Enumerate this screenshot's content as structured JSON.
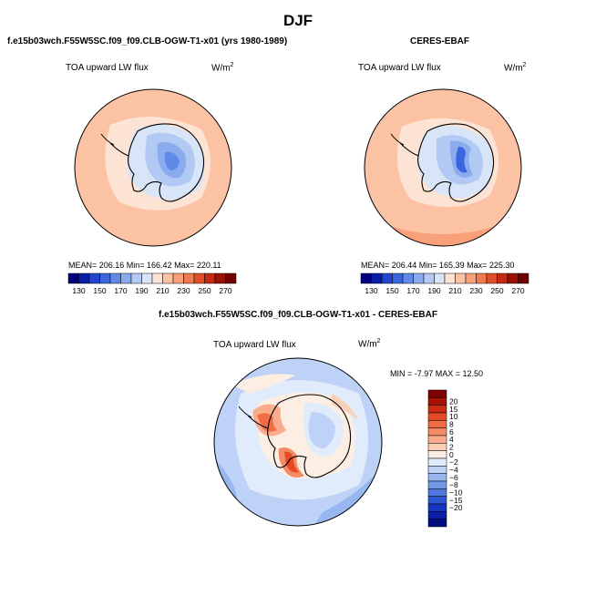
{
  "figure": {
    "title": "DJF",
    "variable_label": "TOA upward LW flux",
    "units_base": "W/m",
    "units_exp": "2"
  },
  "panels": {
    "model": {
      "title": "f.e15b03wch.F55W5SC.f09_f09.CLB-OGW-T1-x01 (yrs 1980-1989)",
      "stats": "MEAN= 206.16   Min= 166.42   Max= 220.11"
    },
    "obs": {
      "title": "CERES-EBAF",
      "stats": "MEAN= 206.44   Min= 165.39   Max= 225.30"
    },
    "diff": {
      "title": "f.e15b03wch.F55W5SC.f09_f09.CLB-OGW-T1-x01 - CERES-EBAF",
      "stats": "MIN =  -7.97 MAX =  12.50"
    }
  },
  "colorbars": {
    "abs": {
      "labels": [
        "130",
        "150",
        "170",
        "190",
        "210",
        "230",
        "250",
        "270"
      ],
      "colors": [
        "#00007f",
        "#0a1fa6",
        "#2145cc",
        "#3a66e0",
        "#5f8ae8",
        "#8aacee",
        "#b2caf3",
        "#d8e5f8",
        "#fde3d4",
        "#fbc3a4",
        "#f7a07a",
        "#ef7a4e",
        "#e14f2b",
        "#c42a12",
        "#9b1104",
        "#6e0000"
      ]
    },
    "diff": {
      "labels": [
        "20",
        "15",
        "10",
        "8",
        "6",
        "4",
        "2",
        "0",
        "−2",
        "−4",
        "−6",
        "−8",
        "−10",
        "−15",
        "−20"
      ],
      "colors": [
        "#7f0000",
        "#a51205",
        "#c92b13",
        "#e34b26",
        "#ef6c44",
        "#f48b66",
        "#f8ac8b",
        "#fbcfb6",
        "#fdeee4",
        "#e0ebfb",
        "#bdd2f6",
        "#98b6ef",
        "#7498e6",
        "#4f77dc",
        "#2d55cf",
        "#1537bd",
        "#0a1fa6",
        "#000c7f"
      ]
    }
  }
}
